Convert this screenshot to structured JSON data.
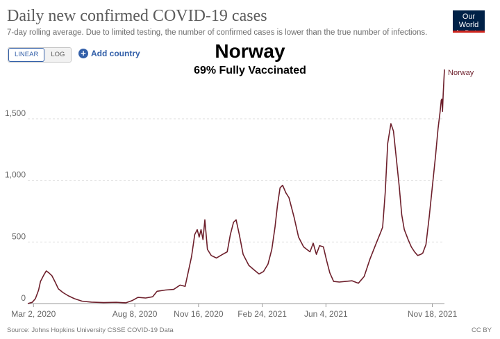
{
  "header": {
    "title": "Daily new confirmed COVID-19 cases",
    "subtitle": "7-day rolling average. Due to limited testing, the number of confirmed cases is lower than the true number of infections.",
    "logo_line1": "Our World",
    "logo_line2": "in Data"
  },
  "controls": {
    "linear_label": "LINEAR",
    "log_label": "LOG",
    "active_scale": "linear",
    "add_country_label": "Add country"
  },
  "overlay": {
    "title": "Norway",
    "subtitle": "69% Fully Vaccinated"
  },
  "footer": {
    "source": "Source: Johns Hopkins University CSSE COVID-19 Data",
    "license": "CC BY"
  },
  "colors": {
    "line": "#6d1f2b",
    "grid": "#dddddd",
    "axis_text": "#666666",
    "accent": "#3360a9",
    "logo_bg": "#002147",
    "logo_bar": "#ce261e"
  },
  "icons": {
    "add": "plus-circle-icon"
  },
  "chart_data": {
    "type": "line",
    "title": "Daily new confirmed COVID-19 cases",
    "xlabel": "",
    "ylabel": "",
    "x_type": "date",
    "xlim": [
      "2020-02-22",
      "2021-12-07"
    ],
    "ylim": [
      0,
      1900
    ],
    "y_ticks": [
      0,
      500,
      1000,
      1500
    ],
    "y_tick_labels": [
      "0",
      "500",
      "1,000",
      "1,500"
    ],
    "x_ticks": [
      "2020-03-02",
      "2020-08-08",
      "2020-11-16",
      "2021-02-24",
      "2021-06-04",
      "2021-11-18"
    ],
    "x_tick_labels": [
      "Mar 2, 2020",
      "Aug 8, 2020",
      "Nov 16, 2020",
      "Feb 24, 2021",
      "Jun 4, 2021",
      "Nov 18, 2021"
    ],
    "grid": true,
    "series": [
      {
        "name": "Norway",
        "color": "#6d1f2b",
        "points": [
          [
            "2020-02-22",
            0
          ],
          [
            "2020-02-29",
            10
          ],
          [
            "2020-03-05",
            40
          ],
          [
            "2020-03-10",
            110
          ],
          [
            "2020-03-13",
            180
          ],
          [
            "2020-03-18",
            230
          ],
          [
            "2020-03-22",
            265
          ],
          [
            "2020-03-26",
            250
          ],
          [
            "2020-03-31",
            225
          ],
          [
            "2020-04-05",
            175
          ],
          [
            "2020-04-10",
            120
          ],
          [
            "2020-04-17",
            90
          ],
          [
            "2020-04-25",
            65
          ],
          [
            "2020-05-05",
            40
          ],
          [
            "2020-05-17",
            20
          ],
          [
            "2020-06-01",
            12
          ],
          [
            "2020-06-20",
            8
          ],
          [
            "2020-07-10",
            10
          ],
          [
            "2020-07-25",
            6
          ],
          [
            "2020-08-04",
            25
          ],
          [
            "2020-08-13",
            50
          ],
          [
            "2020-08-25",
            45
          ],
          [
            "2020-09-05",
            55
          ],
          [
            "2020-09-12",
            100
          ],
          [
            "2020-09-25",
            110
          ],
          [
            "2020-10-08",
            115
          ],
          [
            "2020-10-18",
            150
          ],
          [
            "2020-10-26",
            140
          ],
          [
            "2020-10-31",
            260
          ],
          [
            "2020-11-05",
            380
          ],
          [
            "2020-11-10",
            560
          ],
          [
            "2020-11-14",
            600
          ],
          [
            "2020-11-17",
            540
          ],
          [
            "2020-11-20",
            600
          ],
          [
            "2020-11-23",
            520
          ],
          [
            "2020-11-26",
            680
          ],
          [
            "2020-11-30",
            440
          ],
          [
            "2020-12-06",
            390
          ],
          [
            "2020-12-14",
            370
          ],
          [
            "2020-12-24",
            400
          ],
          [
            "2020-12-31",
            420
          ],
          [
            "2021-01-05",
            560
          ],
          [
            "2021-01-10",
            660
          ],
          [
            "2021-01-14",
            680
          ],
          [
            "2021-01-19",
            560
          ],
          [
            "2021-01-25",
            400
          ],
          [
            "2021-02-03",
            310
          ],
          [
            "2021-02-12",
            270
          ],
          [
            "2021-02-19",
            240
          ],
          [
            "2021-02-26",
            260
          ],
          [
            "2021-03-05",
            320
          ],
          [
            "2021-03-11",
            440
          ],
          [
            "2021-03-16",
            620
          ],
          [
            "2021-03-20",
            800
          ],
          [
            "2021-03-24",
            940
          ],
          [
            "2021-03-28",
            960
          ],
          [
            "2021-04-02",
            900
          ],
          [
            "2021-04-07",
            860
          ],
          [
            "2021-04-15",
            700
          ],
          [
            "2021-04-22",
            540
          ],
          [
            "2021-04-30",
            460
          ],
          [
            "2021-05-05",
            440
          ],
          [
            "2021-05-10",
            420
          ],
          [
            "2021-05-15",
            490
          ],
          [
            "2021-05-20",
            400
          ],
          [
            "2021-05-25",
            470
          ],
          [
            "2021-05-31",
            460
          ],
          [
            "2021-06-05",
            350
          ],
          [
            "2021-06-10",
            250
          ],
          [
            "2021-06-16",
            180
          ],
          [
            "2021-06-25",
            175
          ],
          [
            "2021-07-05",
            180
          ],
          [
            "2021-07-15",
            185
          ],
          [
            "2021-07-25",
            165
          ],
          [
            "2021-08-03",
            220
          ],
          [
            "2021-08-12",
            360
          ],
          [
            "2021-08-22",
            490
          ],
          [
            "2021-08-29",
            580
          ],
          [
            "2021-09-01",
            620
          ],
          [
            "2021-09-05",
            900
          ],
          [
            "2021-09-09",
            1300
          ],
          [
            "2021-09-14",
            1460
          ],
          [
            "2021-09-18",
            1400
          ],
          [
            "2021-09-22",
            1200
          ],
          [
            "2021-09-27",
            950
          ],
          [
            "2021-10-01",
            720
          ],
          [
            "2021-10-05",
            600
          ],
          [
            "2021-10-11",
            520
          ],
          [
            "2021-10-16",
            460
          ],
          [
            "2021-10-21",
            420
          ],
          [
            "2021-10-26",
            390
          ],
          [
            "2021-10-31",
            400
          ],
          [
            "2021-11-03",
            410
          ],
          [
            "2021-11-08",
            480
          ],
          [
            "2021-11-13",
            700
          ],
          [
            "2021-11-18",
            950
          ],
          [
            "2021-11-23",
            1200
          ],
          [
            "2021-11-27",
            1420
          ],
          [
            "2021-11-30",
            1550
          ],
          [
            "2021-12-02",
            1650
          ],
          [
            "2021-12-03",
            1660
          ],
          [
            "2021-12-04",
            1560
          ],
          [
            "2021-12-05",
            1700
          ],
          [
            "2021-12-06",
            1800
          ],
          [
            "2021-12-07",
            1900
          ]
        ]
      }
    ]
  }
}
